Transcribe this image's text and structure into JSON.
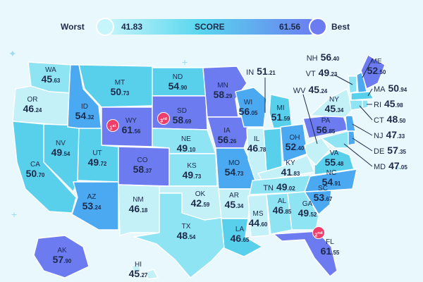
{
  "legend": {
    "worst_label": "Worst",
    "best_label": "Best",
    "min_value": "41.83",
    "max_value": "61.56",
    "score_label": "SCORE",
    "worst_color": "#c6f5fb",
    "best_color": "#6c7cf0"
  },
  "colors": {
    "tier1": "#c4f0f8",
    "tier2": "#8fe4f4",
    "tier3": "#58d0ec",
    "tier4": "#4aa9f0",
    "tier5": "#6c7cf0",
    "badge": "#f03e6b"
  },
  "states": {
    "WA": {
      "abbr": "WA",
      "int": "45",
      "dec": ".63"
    },
    "OR": {
      "abbr": "OR",
      "int": "46",
      "dec": ".24"
    },
    "CA": {
      "abbr": "CA",
      "int": "50",
      "dec": ".70"
    },
    "ID": {
      "abbr": "ID",
      "int": "54",
      "dec": ".32"
    },
    "NV": {
      "abbr": "NV",
      "int": "49",
      "dec": ".54"
    },
    "MT": {
      "abbr": "MT",
      "int": "50",
      "dec": ".73"
    },
    "WY": {
      "abbr": "WY",
      "int": "61",
      "dec": ".56"
    },
    "UT": {
      "abbr": "UT",
      "int": "49",
      "dec": ".72"
    },
    "AZ": {
      "abbr": "AZ",
      "int": "53",
      "dec": ".24"
    },
    "CO": {
      "abbr": "CO",
      "int": "58",
      "dec": ".37"
    },
    "NM": {
      "abbr": "NM",
      "int": "46",
      "dec": ".18"
    },
    "ND": {
      "abbr": "ND",
      "int": "54",
      "dec": ".90"
    },
    "SD": {
      "abbr": "SD",
      "int": "58",
      "dec": ".69"
    },
    "NE": {
      "abbr": "NE",
      "int": "49",
      "dec": ".10"
    },
    "KS": {
      "abbr": "KS",
      "int": "49",
      "dec": ".73"
    },
    "OK": {
      "abbr": "OK",
      "int": "42",
      "dec": ".59"
    },
    "TX": {
      "abbr": "TX",
      "int": "48",
      "dec": ".54"
    },
    "MN": {
      "abbr": "MN",
      "int": "58",
      "dec": ".29"
    },
    "IA": {
      "abbr": "IA",
      "int": "56",
      "dec": ".26"
    },
    "MO": {
      "abbr": "MO",
      "int": "54",
      "dec": ".73"
    },
    "AR": {
      "abbr": "AR",
      "int": "45",
      "dec": ".34"
    },
    "LA": {
      "abbr": "LA",
      "int": "46",
      "dec": ".65"
    },
    "WI": {
      "abbr": "WI",
      "int": "56",
      "dec": ".05"
    },
    "IL": {
      "abbr": "IL",
      "int": "46",
      "dec": ".78"
    },
    "IN": {
      "abbr": "IN",
      "int": "51",
      "dec": ".21"
    },
    "MI": {
      "abbr": "MI",
      "int": "51",
      "dec": ".59"
    },
    "OH": {
      "abbr": "OH",
      "int": "52",
      "dec": ".40"
    },
    "KY": {
      "abbr": "KY",
      "int": "41",
      "dec": ".83"
    },
    "TN": {
      "abbr": "TN",
      "int": "49",
      "dec": ".02"
    },
    "MS": {
      "abbr": "MS",
      "int": "44",
      "dec": ".60"
    },
    "AL": {
      "abbr": "AL",
      "int": "46",
      "dec": ".85"
    },
    "GA": {
      "abbr": "GA",
      "int": "49",
      "dec": ".52"
    },
    "FL": {
      "abbr": "FL",
      "int": "61",
      "dec": ".55"
    },
    "SC": {
      "abbr": "SC",
      "int": "53",
      "dec": ".67"
    },
    "NC": {
      "abbr": "NC",
      "int": "54",
      "dec": ".91"
    },
    "VA": {
      "abbr": "VA",
      "int": "55",
      "dec": ".48"
    },
    "WV": {
      "abbr": "WV",
      "int": "45",
      "dec": ".24"
    },
    "PA": {
      "abbr": "PA",
      "int": "56",
      "dec": ".85"
    },
    "NY": {
      "abbr": "NY",
      "int": "45",
      "dec": ".34"
    },
    "VT": {
      "abbr": "VT",
      "int": "49",
      "dec": ".23"
    },
    "NH": {
      "abbr": "NH",
      "int": "56",
      "dec": ".40"
    },
    "ME": {
      "abbr": "ME",
      "int": "52",
      "dec": ".50"
    },
    "MA": {
      "abbr": "MA",
      "int": "50",
      "dec": ".94"
    },
    "RI": {
      "abbr": "RI",
      "int": "45",
      "dec": ".98"
    },
    "CT": {
      "abbr": "CT",
      "int": "48",
      "dec": ".50"
    },
    "NJ": {
      "abbr": "NJ",
      "int": "47",
      "dec": ".33"
    },
    "DE": {
      "abbr": "DE",
      "int": "57",
      "dec": ".35"
    },
    "MD": {
      "abbr": "MD",
      "int": "47",
      "dec": ".05"
    },
    "AK": {
      "abbr": "AK",
      "int": "57",
      "dec": ".90"
    },
    "HI": {
      "abbr": "HI",
      "int": "45",
      "dec": ".27"
    }
  },
  "ranks": {
    "first": {
      "num": "1",
      "sup": "st"
    },
    "second": {
      "num": "2",
      "sup": "nd"
    },
    "third": {
      "num": "3",
      "sup": "rd"
    }
  }
}
